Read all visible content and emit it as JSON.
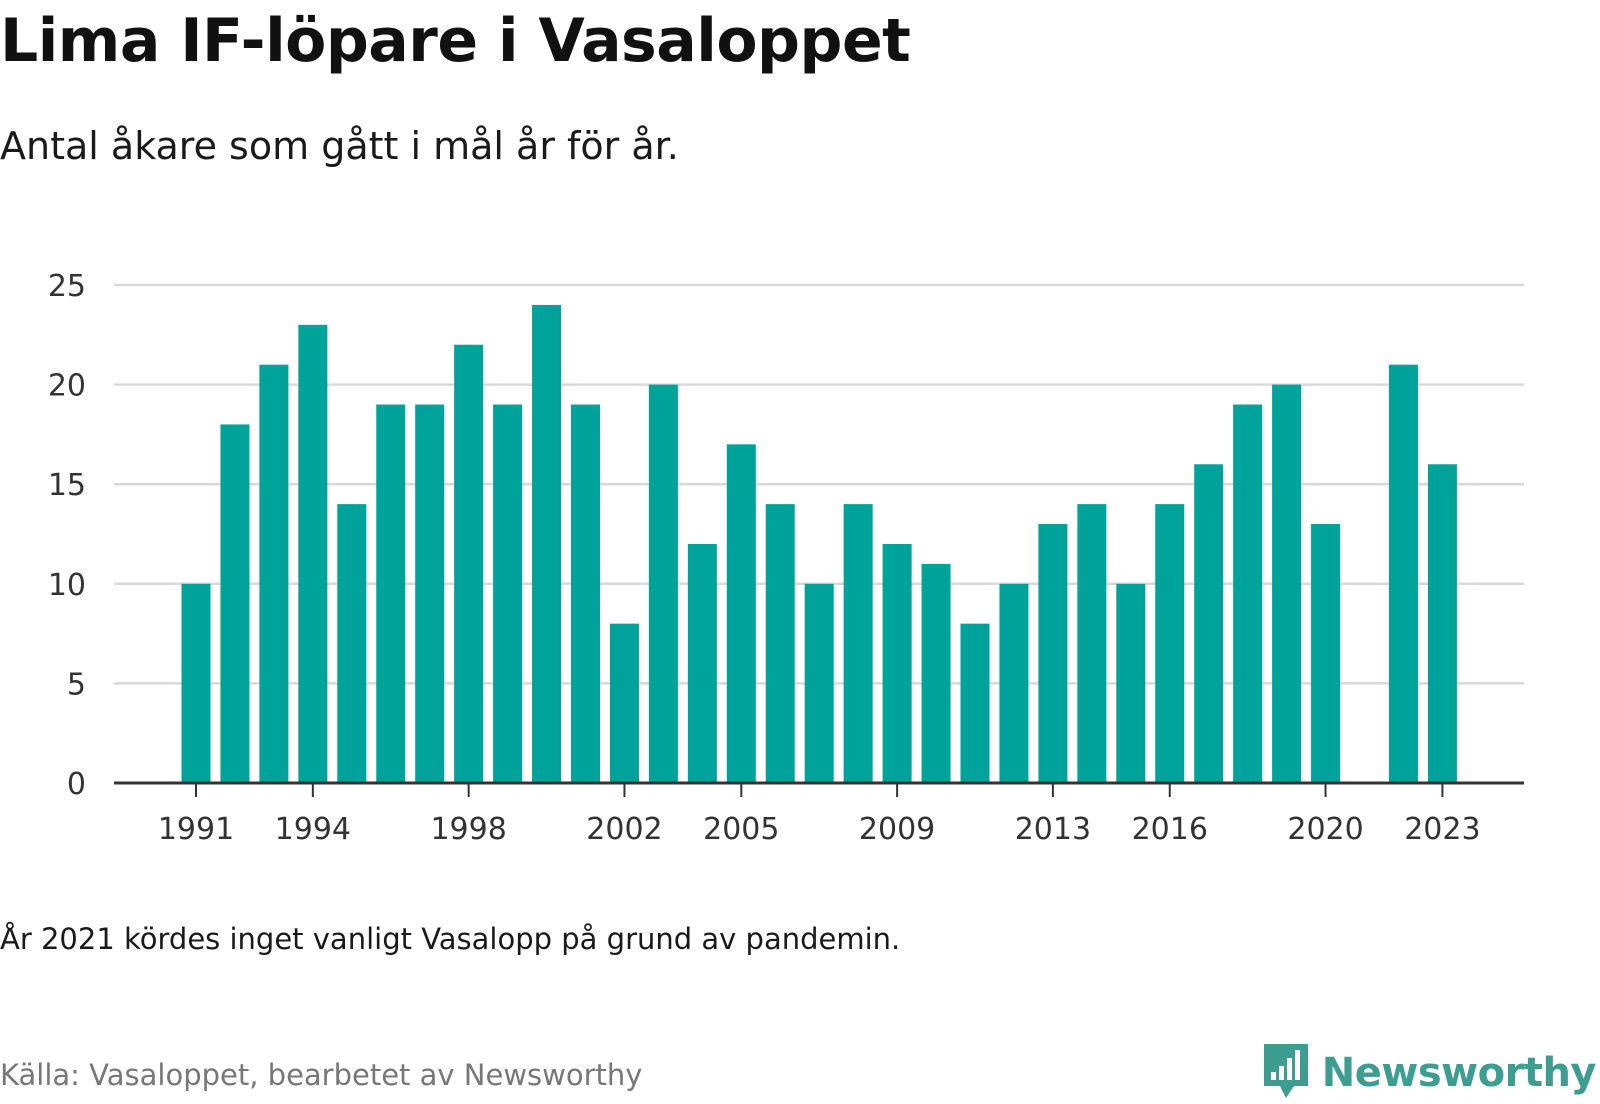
{
  "title": "Lima IF-löpare i Vasaloppet",
  "subtitle": "Antal åkare som gått i mål år för år.",
  "note": "År 2021 kördes inget vanligt Vasalopp på grund av pandemin.",
  "source": "Källa: Vasaloppet, bearbetet av Newsworthy",
  "brand": {
    "name": "Newsworthy",
    "icon": "newsworthy-logo-icon",
    "color": "#3d9d90"
  },
  "colors": {
    "bar": "#00a39a",
    "grid": "#d9d9d9",
    "axis": "#333333"
  },
  "chart_data": {
    "type": "bar",
    "x": [
      1991,
      1992,
      1993,
      1994,
      1995,
      1996,
      1997,
      1998,
      1999,
      2000,
      2001,
      2002,
      2003,
      2004,
      2005,
      2006,
      2007,
      2008,
      2009,
      2010,
      2011,
      2012,
      2013,
      2014,
      2015,
      2016,
      2017,
      2018,
      2019,
      2020,
      2021,
      2022,
      2023
    ],
    "values": [
      10,
      18,
      21,
      23,
      14,
      19,
      19,
      22,
      19,
      24,
      19,
      8,
      20,
      12,
      17,
      14,
      10,
      14,
      12,
      11,
      8,
      10,
      13,
      14,
      10,
      14,
      16,
      19,
      20,
      13,
      null,
      21,
      16
    ],
    "x_tick_labels": [
      1991,
      1994,
      1998,
      2002,
      2005,
      2009,
      2013,
      2016,
      2020,
      2023
    ],
    "y_ticks": [
      0,
      5,
      10,
      15,
      20,
      25
    ],
    "ylim": [
      0,
      25
    ],
    "grid": true
  }
}
